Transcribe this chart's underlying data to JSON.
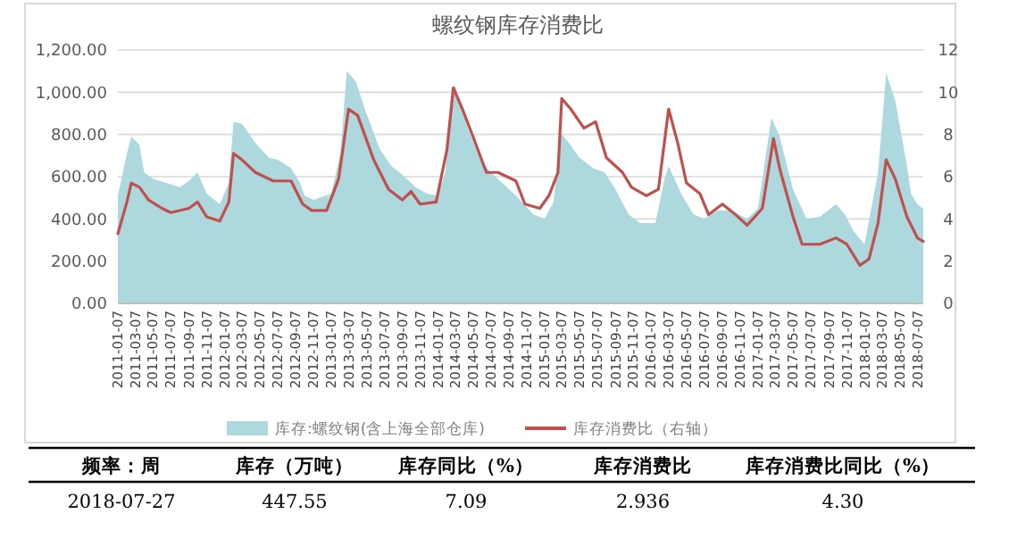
{
  "chart_data": {
    "type": "area",
    "title": "螺纹钢库存消费比",
    "legend": "bottom",
    "grid": "y",
    "xlim": [
      "2011-01-07",
      "2018-07-27"
    ],
    "xticks": [
      "2011-01-07",
      "2011-03-07",
      "2011-05-07",
      "2011-07-07",
      "2011-09-07",
      "2011-11-07",
      "2012-01-07",
      "2012-03-07",
      "2012-05-07",
      "2012-07-07",
      "2012-09-07",
      "2012-11-07",
      "2013-01-07",
      "2013-03-07",
      "2013-05-07",
      "2013-07-07",
      "2013-09-07",
      "2013-11-07",
      "2014-01-07",
      "2014-03-07",
      "2014-05-07",
      "2014-07-07",
      "2014-09-07",
      "2014-11-07",
      "2015-01-07",
      "2015-03-07",
      "2015-05-07",
      "2015-07-07",
      "2015-09-07",
      "2015-11-07",
      "2016-01-07",
      "2016-03-07",
      "2016-05-07",
      "2016-07-07",
      "2016-09-07",
      "2016-11-07",
      "2017-01-07",
      "2017-03-07",
      "2017-05-07",
      "2017-07-07",
      "2017-09-07",
      "2017-11-07",
      "2018-01-07",
      "2018-03-07",
      "2018-05-07",
      "2018-07-07"
    ],
    "ylim": [
      0,
      1200
    ],
    "yticks": [
      {
        "value": 0,
        "label": "0.00"
      },
      {
        "value": 200,
        "label": "200.00"
      },
      {
        "value": 400,
        "label": "400.00"
      },
      {
        "value": 600,
        "label": "600.00"
      },
      {
        "value": 800,
        "label": "800.00"
      },
      {
        "value": 1000,
        "label": "1,000.00"
      },
      {
        "value": 1200,
        "label": "1,200.00"
      }
    ],
    "y2lim": [
      0,
      12
    ],
    "y2ticks": [
      0,
      2,
      4,
      6,
      8,
      10,
      12
    ],
    "series": [
      {
        "name": "库存:螺纹钢(含上海全部仓库)",
        "color": "#acd8de",
        "x": [
          "2011-01-07",
          "2011-02-07",
          "2011-02-22",
          "2011-03-22",
          "2011-04-07",
          "2011-05-07",
          "2011-06-22",
          "2011-08-07",
          "2011-09-07",
          "2011-10-07",
          "2011-11-07",
          "2011-12-22",
          "2012-01-22",
          "2012-02-07",
          "2012-03-07",
          "2012-04-22",
          "2012-06-07",
          "2012-07-07",
          "2012-08-22",
          "2012-09-22",
          "2012-10-07",
          "2012-11-07",
          "2013-01-07",
          "2013-02-07",
          "2013-03-01",
          "2013-04-01",
          "2013-05-07",
          "2013-06-22",
          "2013-08-01",
          "2013-09-07",
          "2013-10-22",
          "2013-12-01",
          "2014-01-07",
          "2014-02-01",
          "2014-02-22",
          "2014-03-07",
          "2014-04-22",
          "2014-06-01",
          "2014-07-07",
          "2014-10-01",
          "2014-12-01",
          "2015-01-07",
          "2015-02-07",
          "2015-03-01",
          "2015-04-01",
          "2015-05-07",
          "2015-06-22",
          "2015-08-01",
          "2015-09-07",
          "2015-10-22",
          "2015-12-01",
          "2016-01-22",
          "2016-02-22",
          "2016-03-07",
          "2016-04-22",
          "2016-06-01",
          "2016-07-07",
          "2016-08-22",
          "2016-10-07",
          "2016-12-01",
          "2017-01-07",
          "2017-02-22",
          "2017-03-22",
          "2017-05-07",
          "2017-06-22",
          "2017-08-07",
          "2017-10-01",
          "2017-11-01",
          "2017-12-01",
          "2018-01-07",
          "2018-02-22",
          "2018-03-22",
          "2018-04-22",
          "2018-06-01",
          "2018-06-15",
          "2018-07-07",
          "2018-07-27"
        ],
        "values": [
          510,
          710,
          790,
          750,
          620,
          590,
          570,
          550,
          580,
          620,
          520,
          470,
          570,
          860,
          850,
          760,
          690,
          680,
          640,
          570,
          510,
          490,
          520,
          710,
          1100,
          1050,
          900,
          730,
          650,
          610,
          550,
          520,
          510,
          620,
          1020,
          1030,
          820,
          680,
          620,
          510,
          420,
          400,
          480,
          810,
          760,
          690,
          640,
          620,
          540,
          420,
          380,
          380,
          590,
          650,
          510,
          420,
          400,
          440,
          440,
          400,
          450,
          880,
          790,
          540,
          400,
          410,
          470,
          420,
          340,
          280,
          620,
          1090,
          960,
          650,
          520,
          470,
          447.55
        ]
      },
      {
        "name": "库存消费比（右轴）",
        "type": "line",
        "axis": "y2",
        "color": "#c0504d",
        "x": [
          "2011-01-07",
          "2011-02-07",
          "2011-02-22",
          "2011-03-22",
          "2011-04-22",
          "2011-06-07",
          "2011-07-07",
          "2011-09-07",
          "2011-10-07",
          "2011-11-07",
          "2011-12-22",
          "2012-01-22",
          "2012-02-07",
          "2012-03-07",
          "2012-04-22",
          "2012-06-22",
          "2012-08-22",
          "2012-10-01",
          "2012-11-01",
          "2012-12-22",
          "2013-02-01",
          "2013-03-07",
          "2013-04-07",
          "2013-06-01",
          "2013-07-22",
          "2013-09-07",
          "2013-10-07",
          "2013-11-07",
          "2014-01-01",
          "2014-02-07",
          "2014-03-01",
          "2014-04-01",
          "2014-05-07",
          "2014-06-22",
          "2014-08-01",
          "2014-10-01",
          "2014-11-01",
          "2014-12-22",
          "2015-01-22",
          "2015-02-22",
          "2015-03-07",
          "2015-04-07",
          "2015-05-22",
          "2015-07-01",
          "2015-08-07",
          "2015-10-01",
          "2015-11-01",
          "2015-12-22",
          "2016-02-01",
          "2016-03-07",
          "2016-04-07",
          "2016-05-07",
          "2016-06-22",
          "2016-07-22",
          "2016-09-07",
          "2016-10-22",
          "2016-12-01",
          "2017-01-22",
          "2017-03-01",
          "2017-03-22",
          "2017-05-07",
          "2017-06-07",
          "2017-08-07",
          "2017-10-01",
          "2017-11-07",
          "2017-12-22",
          "2018-01-22",
          "2018-02-22",
          "2018-03-22",
          "2018-04-22",
          "2018-06-01",
          "2018-07-07",
          "2018-07-27"
        ],
        "values": [
          3.3,
          4.8,
          5.7,
          5.5,
          4.9,
          4.5,
          4.3,
          4.5,
          4.8,
          4.1,
          3.9,
          4.8,
          7.1,
          6.8,
          6.2,
          5.8,
          5.8,
          4.7,
          4.4,
          4.4,
          5.9,
          9.2,
          8.9,
          6.8,
          5.4,
          4.9,
          5.3,
          4.7,
          4.8,
          7.3,
          10.2,
          9.2,
          7.9,
          6.2,
          6.2,
          5.8,
          4.7,
          4.5,
          5.1,
          6.2,
          9.7,
          9.2,
          8.3,
          8.6,
          6.9,
          6.2,
          5.5,
          5.1,
          5.4,
          9.2,
          7.6,
          5.7,
          5.2,
          4.2,
          4.7,
          4.2,
          3.7,
          4.5,
          7.8,
          6.4,
          4.1,
          2.8,
          2.8,
          3.1,
          2.8,
          1.8,
          2.1,
          3.8,
          6.8,
          5.9,
          4.1,
          3.1,
          2.936
        ]
      }
    ],
    "annotations": [
      "频率：周",
      "库存（万吨）",
      "库存同比（%）",
      "库存消费比",
      "库存消费比同比（%）",
      "2018-07-27",
      "447.55",
      "7.09",
      "2.936",
      "4.30"
    ]
  }
}
